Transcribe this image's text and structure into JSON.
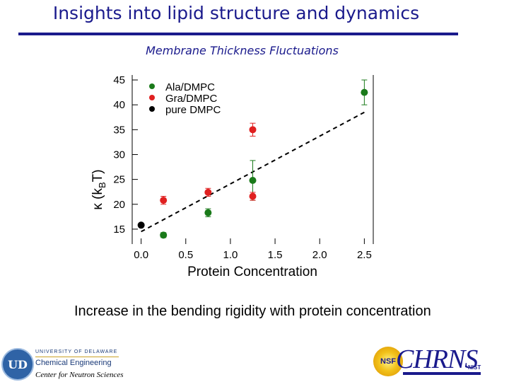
{
  "slide": {
    "title": "Insights into lipid structure and dynamics",
    "subtitle": "Membrane Thickness Fluctuations",
    "caption": "Increase in the bending rigidity with protein concentration"
  },
  "logos": {
    "ud_mark": "UD",
    "ud_university": "UNIVERSITY OF DELAWARE",
    "ud_department": "Chemical Engineering",
    "ud_center": "Center for Neutron Sciences",
    "chrns_text": "CHRNS",
    "chrns_badge": "NSF",
    "nist_text": "NIST"
  },
  "chart_data": {
    "type": "scatter",
    "xlabel": "Protein Concentration",
    "ylabel_main": "κ (k",
    "ylabel_sub": "B",
    "ylabel_end": "T)",
    "xlim": [
      -0.1,
      2.6
    ],
    "ylim": [
      12,
      46
    ],
    "xticks": [
      0.0,
      0.5,
      1.0,
      1.5,
      2.0,
      2.5
    ],
    "xtick_labels": [
      "0.0",
      "0.5",
      "1.0",
      "1.5",
      "2.0",
      "2.5"
    ],
    "yticks": [
      15,
      20,
      25,
      30,
      35,
      40,
      45
    ],
    "ytick_labels": [
      "15",
      "20",
      "25",
      "30",
      "35",
      "40",
      "45"
    ],
    "grid": false,
    "legend_position": "top-left",
    "series": [
      {
        "name": "Ala/DMPC",
        "color": "#1a7a1a",
        "points": [
          {
            "x": 0.25,
            "y": 13.8,
            "err": 0.5
          },
          {
            "x": 0.75,
            "y": 18.3,
            "err": 0.8
          },
          {
            "x": 1.25,
            "y": 24.8,
            "err": 4.0
          },
          {
            "x": 2.5,
            "y": 42.5,
            "err": 2.5
          }
        ]
      },
      {
        "name": "Gra/DMPC",
        "color": "#e02020",
        "points": [
          {
            "x": 0.25,
            "y": 20.8,
            "err": 0.8
          },
          {
            "x": 0.75,
            "y": 22.4,
            "err": 0.8
          },
          {
            "x": 1.25,
            "y": 35.0,
            "err": 1.3
          },
          {
            "x": 1.25,
            "y": 21.6,
            "err": 0.8
          }
        ]
      },
      {
        "name": "pure DMPC",
        "color": "#000000",
        "points": [
          {
            "x": 0.0,
            "y": 15.8,
            "err": 0.3
          }
        ]
      }
    ],
    "fit_line": {
      "style": "dashed",
      "x": [
        0.0,
        2.5
      ],
      "y": [
        14.5,
        38.5
      ]
    }
  }
}
